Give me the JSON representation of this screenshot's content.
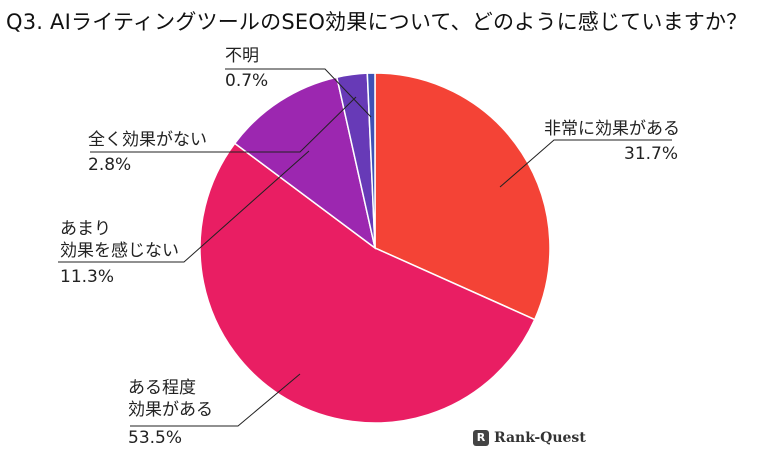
{
  "title": "Q3. AIライティングツールのSEO効果について、どのように感じていますか？",
  "brand": {
    "icon_text": "R",
    "name": "Rank-Quest"
  },
  "chart_data": {
    "type": "pie",
    "title": "Q3. AIライティングツールのSEO効果について、どのように感じていますか？",
    "slices": [
      {
        "label": "非常に効果がある",
        "value": 31.7,
        "display": "31.7%",
        "color": "#F44336"
      },
      {
        "label": "ある程度効果がある",
        "value": 53.5,
        "display": "53.5%",
        "color": "#E91E63"
      },
      {
        "label": "あまり効果を感じない",
        "value": 11.3,
        "display": "11.3%",
        "color": "#9C27B0"
      },
      {
        "label": "全く効果がない",
        "value": 2.8,
        "display": "2.8%",
        "color": "#673AB7"
      },
      {
        "label": "不明",
        "value": 0.7,
        "display": "0.7%",
        "color": "#3F51B5"
      }
    ]
  },
  "labels": {
    "very": {
      "lines": [
        "非常に効果がある"
      ],
      "pct": "31.7%"
    },
    "some": {
      "lines": [
        "ある程度",
        "効果がある"
      ],
      "pct": "53.5%"
    },
    "little": {
      "lines": [
        "あまり",
        "効果を感じない"
      ],
      "pct": "11.3%"
    },
    "none": {
      "lines": [
        "全く効果がない"
      ],
      "pct": "2.8%"
    },
    "unknown": {
      "lines": [
        "不明"
      ],
      "pct": "0.7%"
    }
  }
}
